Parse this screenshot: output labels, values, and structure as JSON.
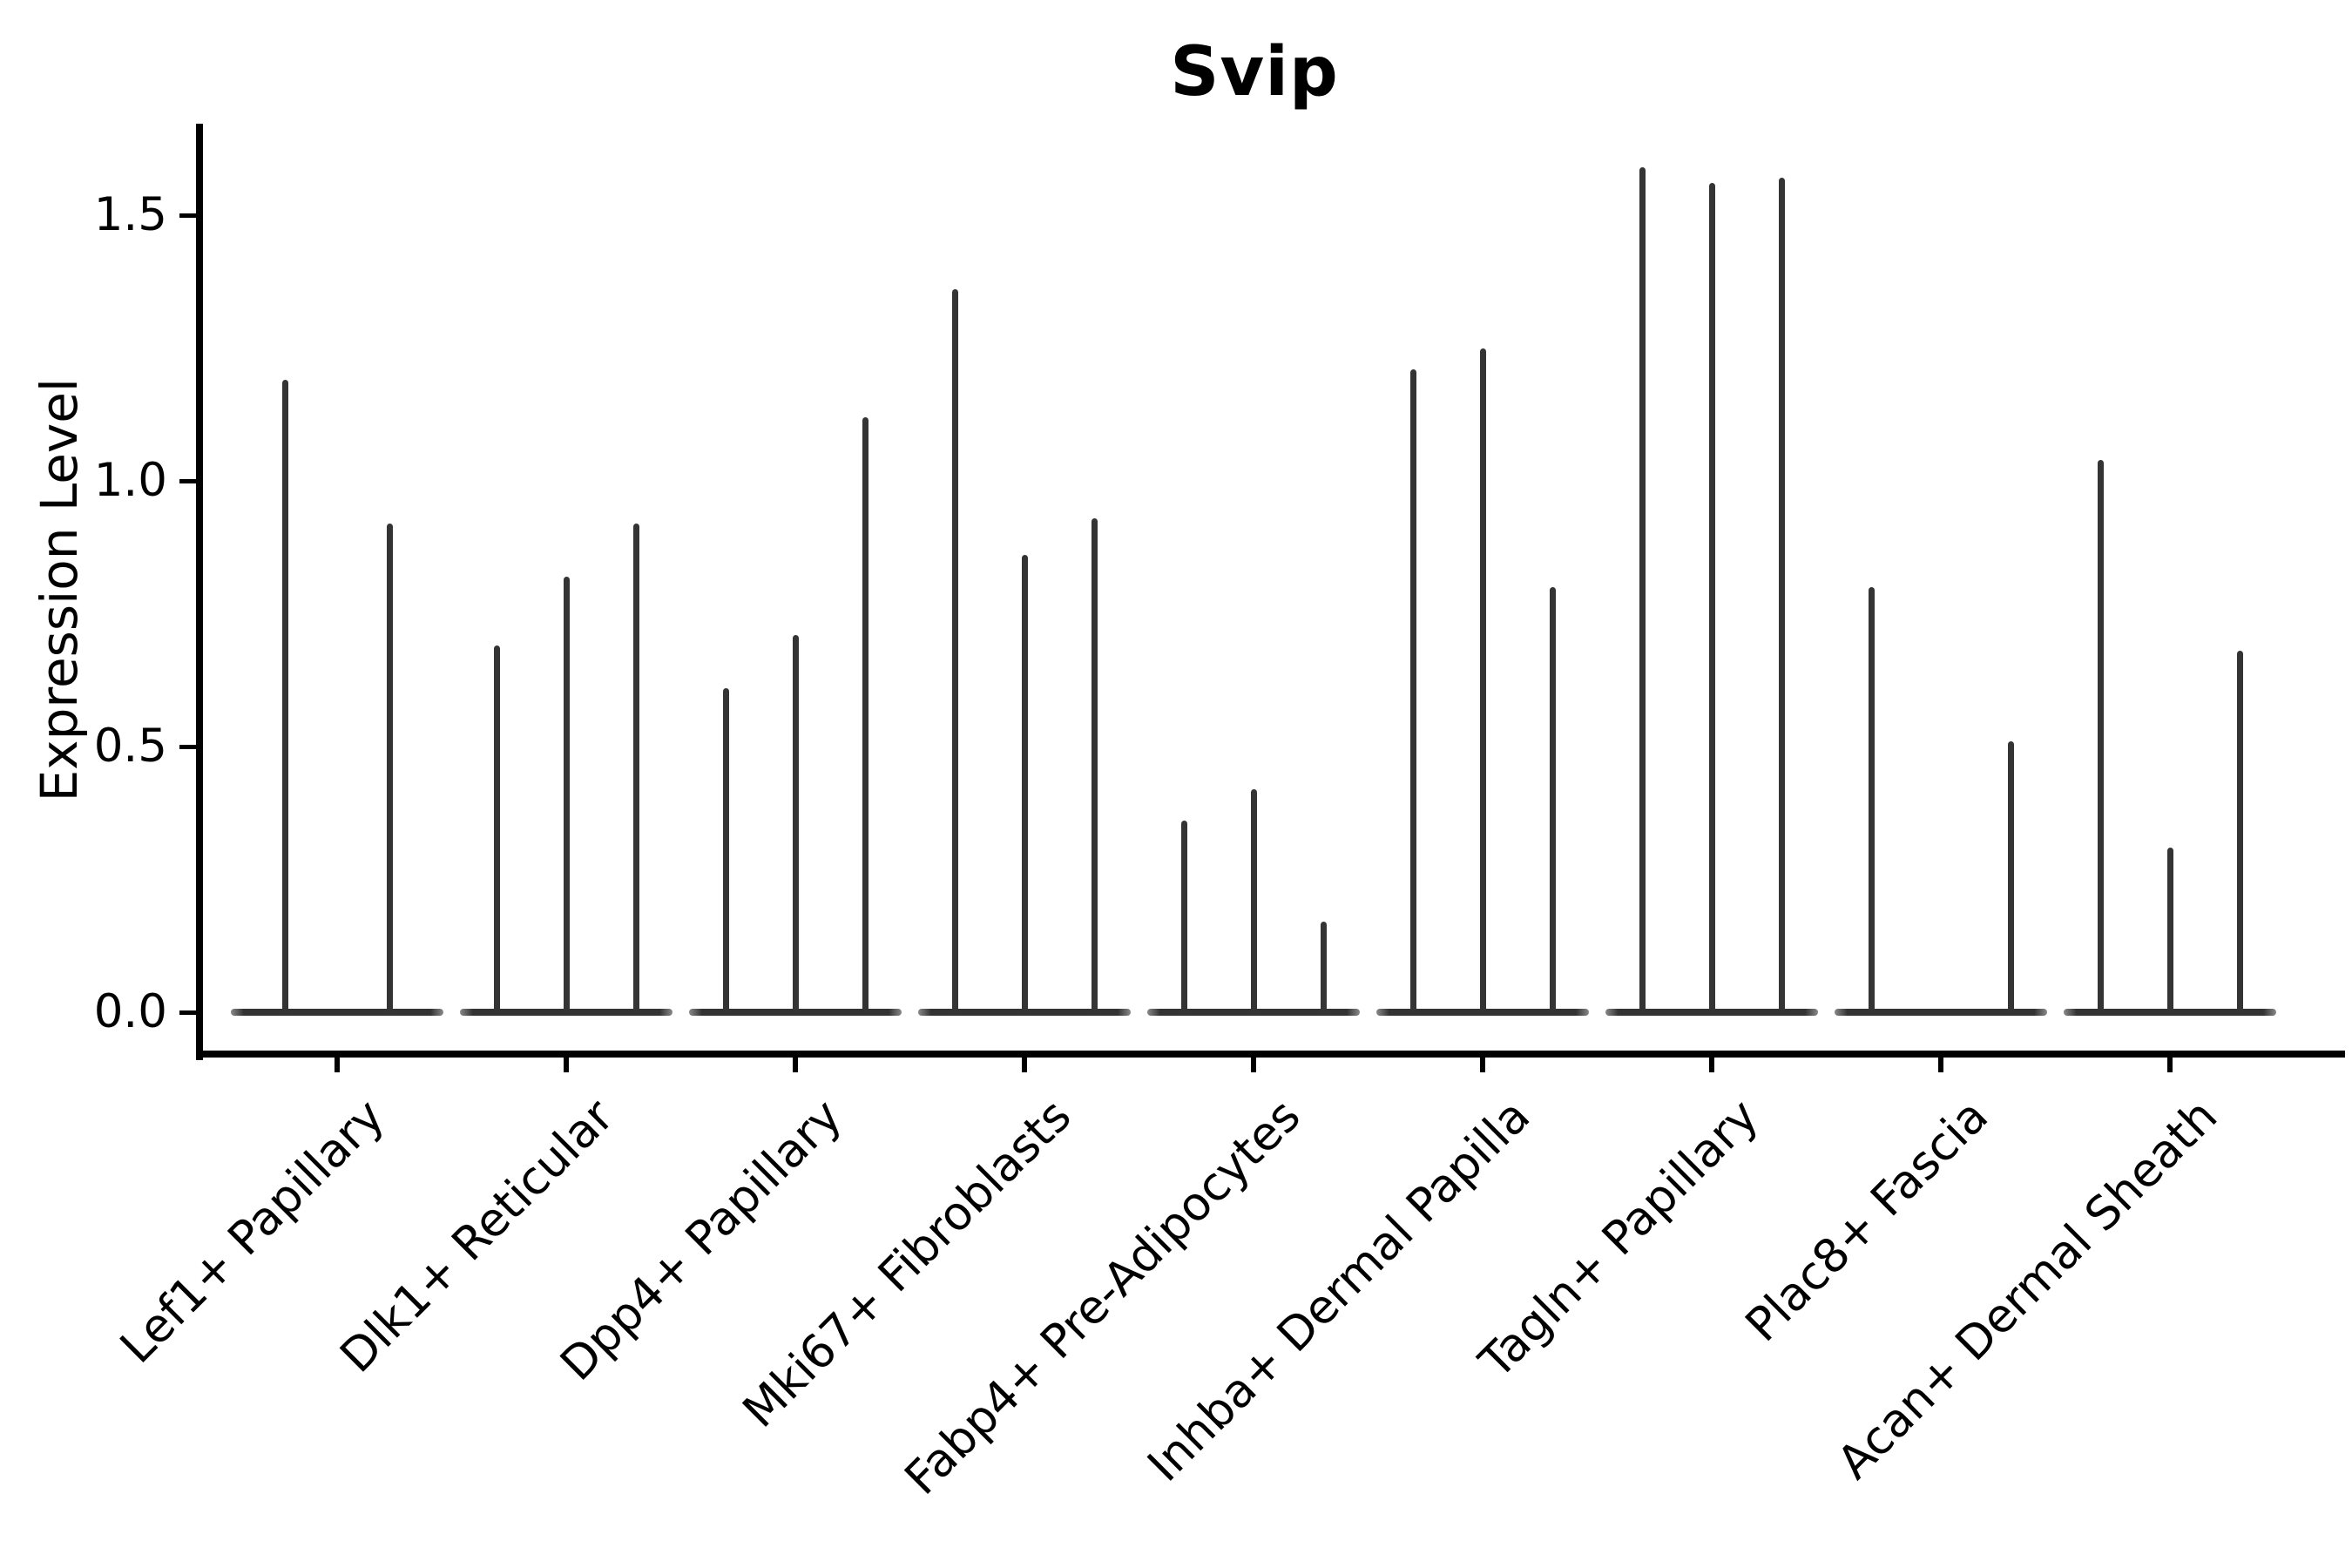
{
  "title": "Svip",
  "axes": {
    "y_label": "Expression Level",
    "y_ticks": [
      "0.0",
      "0.5",
      "1.0",
      "1.5"
    ],
    "y_tick_values": [
      0.0,
      0.5,
      1.0,
      1.5
    ],
    "x_categories": [
      "Lef1+ Papillary",
      "Dlk1+ Reticular",
      "Dpp4+ Papillary",
      "Mki67+ Fibroblasts",
      "Fabp4+ Pre-Adipocytes",
      "Inhba+ Dermal Papilla",
      "Tagln+ Papillary",
      "Plac8+ Fascia",
      "Acan+ Dermal Sheath"
    ]
  },
  "chart_data": {
    "type": "violin",
    "title": "Svip",
    "xlabel": "",
    "ylabel": "Expression Level",
    "ylim": [
      0,
      1.67
    ],
    "grid": false,
    "legend": "none",
    "note": "Thin spike-like violins; each category shows 2-3 violins collapsed to vertical lines rising from a flat base at 0; values are the maximum expression level reached by each violin spike (0 = flat violin, no spike).",
    "categories": [
      "Lef1+ Papillary",
      "Dlk1+ Reticular",
      "Dpp4+ Papillary",
      "Mki67+ Fibroblasts",
      "Fabp4+ Pre-Adipocytes",
      "Inhba+ Dermal Papilla",
      "Tagln+ Papillary",
      "Plac8+ Fascia",
      "Acan+ Dermal Sheath"
    ],
    "groups": [
      {
        "category": "Lef1+ Papillary",
        "violin_maxima": [
          1.19,
          0.92
        ]
      },
      {
        "category": "Dlk1+ Reticular",
        "violin_maxima": [
          0.69,
          0.82,
          0.92
        ]
      },
      {
        "category": "Dpp4+ Papillary",
        "violin_maxima": [
          0.61,
          0.71,
          1.12
        ]
      },
      {
        "category": "Mki67+ Fibroblasts",
        "violin_maxima": [
          1.36,
          0.86,
          0.93
        ]
      },
      {
        "category": "Fabp4+ Pre-Adipocytes",
        "violin_maxima": [
          0.36,
          0.42,
          0.17
        ]
      },
      {
        "category": "Inhba+ Dermal Papilla",
        "violin_maxima": [
          1.21,
          1.25,
          0.8
        ]
      },
      {
        "category": "Tagln+ Papillary",
        "violin_maxima": [
          1.59,
          1.56,
          1.57
        ]
      },
      {
        "category": "Plac8+ Fascia",
        "violin_maxima": [
          0.8,
          0,
          0.51
        ]
      },
      {
        "category": "Acan+ Dermal Sheath",
        "violin_maxima": [
          1.04,
          0.31,
          0.68
        ]
      }
    ]
  },
  "colors": {
    "violin": "#343434",
    "baseline": "#333333",
    "axis": "#000000",
    "text": "#000000",
    "background": "#ffffff"
  }
}
